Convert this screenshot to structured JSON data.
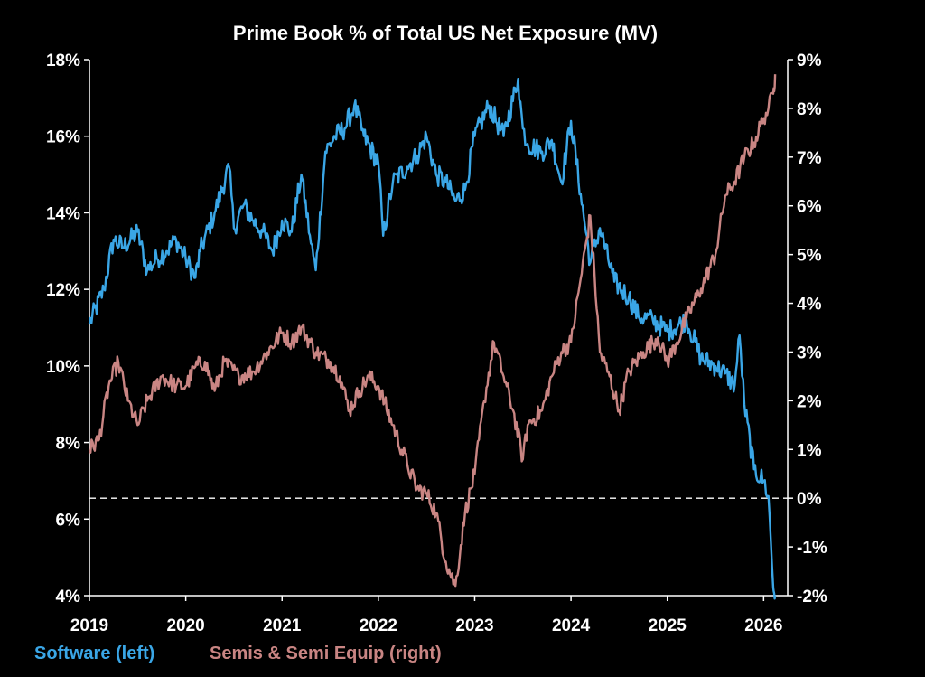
{
  "chart_data": {
    "type": "line",
    "title": "Prime Book % of Total US Net Exposure (MV)",
    "x_ticks": [
      "2019",
      "2020",
      "2021",
      "2022",
      "2023",
      "2024",
      "2025",
      "2026"
    ],
    "xlim": [
      2019.0,
      2026.25
    ],
    "left_axis": {
      "ylim": [
        4,
        18
      ],
      "ticks": [
        4,
        6,
        8,
        10,
        12,
        14,
        16,
        18
      ],
      "tick_labels": [
        "4%",
        "6%",
        "8%",
        "10%",
        "12%",
        "14%",
        "16%",
        "18%"
      ]
    },
    "right_axis": {
      "ylim": [
        -2,
        9
      ],
      "ticks": [
        -2,
        -1,
        0,
        1,
        2,
        3,
        4,
        5,
        6,
        7,
        8,
        9
      ],
      "tick_labels": [
        "-2%",
        "-1%",
        "0%",
        "1%",
        "2%",
        "3%",
        "4%",
        "5%",
        "6%",
        "7%",
        "8%",
        "9%"
      ]
    },
    "reference_line": {
      "axis": "right",
      "value": 0,
      "style": "dashed"
    },
    "grid": false,
    "legend_position": "bottom-left",
    "series": [
      {
        "name": "Software (left)",
        "axis": "left",
        "color": "#3aa6e6",
        "x": [
          2019.0,
          2019.15,
          2019.25,
          2019.35,
          2019.5,
          2019.6,
          2019.7,
          2019.8,
          2019.9,
          2020.0,
          2020.1,
          2020.15,
          2020.3,
          2020.45,
          2020.5,
          2020.6,
          2020.7,
          2020.8,
          2020.9,
          2021.0,
          2021.1,
          2021.2,
          2021.3,
          2021.35,
          2021.45,
          2021.55,
          2021.65,
          2021.75,
          2021.85,
          2022.0,
          2022.05,
          2022.15,
          2022.3,
          2022.4,
          2022.5,
          2022.6,
          2022.7,
          2022.8,
          2022.9,
          2023.0,
          2023.15,
          2023.3,
          2023.45,
          2023.5,
          2023.55,
          2023.7,
          2023.8,
          2023.9,
          2024.0,
          2024.1,
          2024.2,
          2024.3,
          2024.45,
          2024.6,
          2024.7,
          2024.85,
          2025.0,
          2025.2,
          2025.35,
          2025.5,
          2025.6,
          2025.7,
          2025.75,
          2025.8,
          2025.9,
          2026.0,
          2026.05,
          2026.1,
          2026.12
        ],
        "values": [
          11.1,
          12.0,
          13.3,
          13.1,
          13.5,
          12.5,
          12.8,
          13.0,
          13.3,
          12.8,
          12.3,
          13.0,
          14.0,
          15.2,
          13.6,
          14.2,
          13.8,
          13.5,
          13.0,
          13.8,
          13.5,
          15.0,
          13.2,
          12.5,
          15.6,
          16.0,
          16.2,
          16.8,
          16.0,
          15.3,
          13.4,
          14.8,
          15.2,
          15.5,
          16.0,
          15.0,
          14.8,
          14.3,
          14.6,
          16.0,
          16.8,
          16.0,
          17.5,
          16.2,
          15.8,
          15.6,
          15.9,
          14.8,
          16.4,
          14.5,
          12.7,
          13.6,
          12.2,
          11.8,
          11.3,
          11.2,
          10.9,
          11.2,
          10.2,
          10.0,
          9.8,
          9.5,
          10.8,
          9.0,
          7.3,
          7.0,
          6.6,
          4.2,
          4.0
        ]
      },
      {
        "name": "Semis & Semi Equip (right)",
        "axis": "right",
        "color": "#c98583",
        "x": [
          2019.0,
          2019.1,
          2019.2,
          2019.3,
          2019.4,
          2019.5,
          2019.6,
          2019.75,
          2019.9,
          2020.0,
          2020.1,
          2020.2,
          2020.3,
          2020.4,
          2020.55,
          2020.7,
          2020.85,
          2021.0,
          2021.1,
          2021.2,
          2021.35,
          2021.5,
          2021.6,
          2021.7,
          2021.8,
          2021.9,
          2022.0,
          2022.15,
          2022.3,
          2022.4,
          2022.5,
          2022.6,
          2022.7,
          2022.8,
          2022.9,
          2023.0,
          2023.1,
          2023.2,
          2023.3,
          2023.4,
          2023.5,
          2023.55,
          2023.7,
          2023.8,
          2023.9,
          2024.0,
          2024.1,
          2024.2,
          2024.3,
          2024.4,
          2024.5,
          2024.6,
          2024.75,
          2024.9,
          2025.0,
          2025.1,
          2025.2,
          2025.35,
          2025.5,
          2025.6,
          2025.7,
          2025.8,
          2025.9,
          2026.0,
          2026.05,
          2026.1,
          2026.12
        ],
        "values": [
          1.0,
          1.2,
          2.3,
          2.8,
          2.0,
          1.5,
          2.0,
          2.5,
          2.3,
          2.3,
          2.7,
          2.8,
          2.2,
          2.8,
          2.5,
          2.6,
          3.0,
          3.4,
          3.2,
          3.5,
          3.0,
          2.8,
          2.5,
          1.8,
          2.2,
          2.5,
          2.3,
          1.5,
          0.7,
          0.2,
          0.1,
          -0.3,
          -1.3,
          -1.8,
          -0.3,
          0.5,
          2.0,
          3.2,
          2.5,
          1.8,
          0.8,
          1.5,
          1.8,
          2.5,
          3.0,
          3.2,
          4.5,
          5.8,
          3.0,
          2.5,
          1.8,
          2.6,
          3.0,
          3.3,
          2.8,
          3.2,
          3.7,
          4.3,
          5.0,
          6.2,
          6.5,
          7.0,
          7.3,
          7.8,
          8.0,
          8.3,
          8.7
        ]
      }
    ]
  }
}
